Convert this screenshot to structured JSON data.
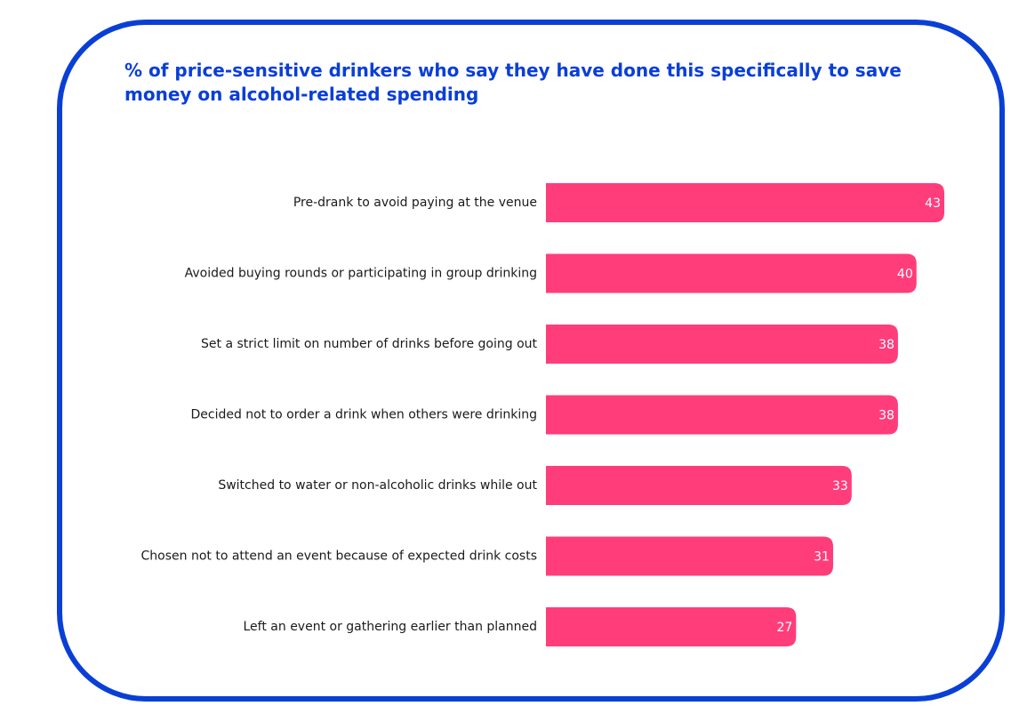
{
  "colors": {
    "border": "#0a3fd6",
    "title": "#0a3fd6",
    "bar": "#ff3d7a",
    "value_text": "#ffffff",
    "label_text": "#1a1a1a"
  },
  "chart_data": {
    "type": "bar",
    "orientation": "horizontal",
    "title": "% of price-sensitive drinkers who say they have done this specifically to save money on alcohol-related spending",
    "categories": [
      "Pre-drank to avoid paying at the venue",
      "Avoided buying rounds or participating in group drinking",
      "Set a strict limit on number of drinks before going out",
      "Decided not to order a drink when others were drinking",
      "Switched to water or non-alcoholic drinks while out",
      "Chosen not to attend an event because of expected drink costs",
      "Left an event or gathering earlier than planned"
    ],
    "values": [
      43,
      40,
      38,
      38,
      33,
      31,
      27
    ],
    "value_labels": [
      "43",
      "40",
      "38",
      "38",
      "33",
      "31",
      "27"
    ],
    "xlim": [
      0,
      43
    ],
    "grid": false,
    "legend": "none"
  }
}
